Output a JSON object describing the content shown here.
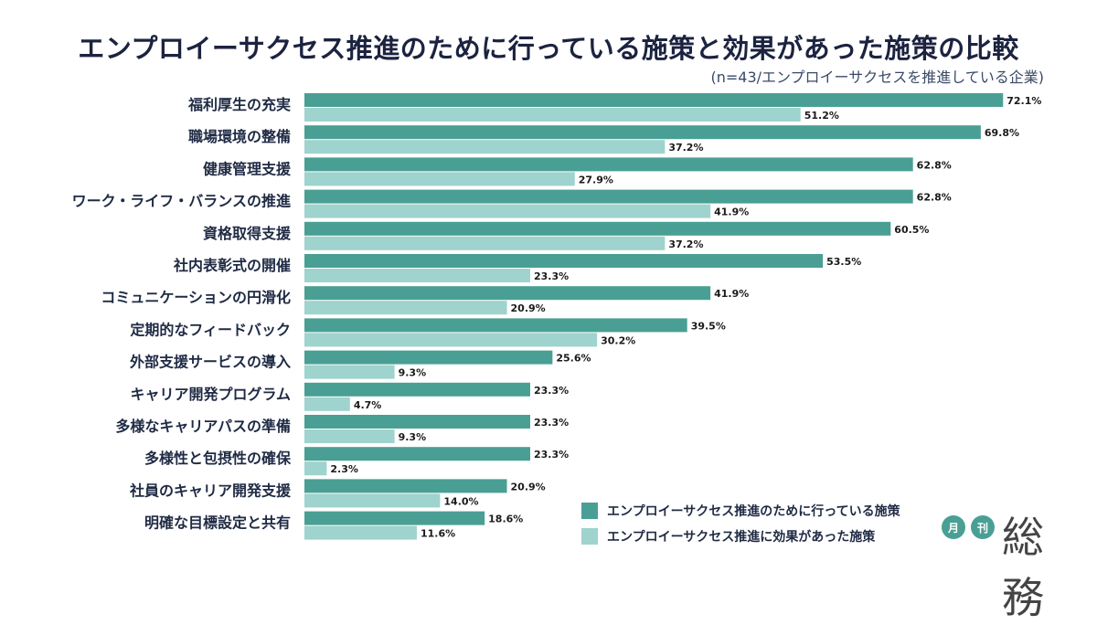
{
  "title": "エンプロイーサクセス推進のために行っている施策と効果があった施策の比較",
  "subtitle": "(n=43/エンプロイーサクセスを推進している企業)",
  "colors": {
    "series1": "#4a9f94",
    "series2": "#9fd3cd"
  },
  "legend": [
    "エンプロイーサクセス推進のために行っている施策",
    "エンプロイーサクセス推進に効果があった施策"
  ],
  "logo": {
    "badge1": "月",
    "badge2": "刊",
    "mark": "総務"
  },
  "chart_data": {
    "type": "bar",
    "orientation": "horizontal",
    "title": "エンプロイーサクセス推進のために行っている施策と効果があった施策の比較",
    "xlim": [
      0,
      100
    ],
    "unit": "%",
    "categories": [
      "福利厚生の充実",
      "職場環境の整備",
      "健康管理支援",
      "ワーク・ライフ・バランスの推進",
      "資格取得支援",
      "社内表彰式の開催",
      "コミュニケーションの円滑化",
      "定期的なフィードバック",
      "外部支援サービスの導入",
      "キャリア開発プログラム",
      "多様なキャリアパスの準備",
      "多様性と包摂性の確保",
      "社員のキャリア開発支援",
      "明確な目標設定と共有"
    ],
    "series": [
      {
        "name": "エンプロイーサクセス推進のために行っている施策",
        "values": [
          72.1,
          69.8,
          62.8,
          62.8,
          60.5,
          53.5,
          41.9,
          39.5,
          25.6,
          23.3,
          23.3,
          23.3,
          20.9,
          18.6
        ]
      },
      {
        "name": "エンプロイーサクセス推進に効果があった施策",
        "values": [
          51.2,
          37.2,
          27.9,
          41.9,
          37.2,
          23.3,
          20.9,
          30.2,
          9.3,
          4.7,
          9.3,
          2.3,
          14.0,
          11.6
        ]
      }
    ]
  }
}
